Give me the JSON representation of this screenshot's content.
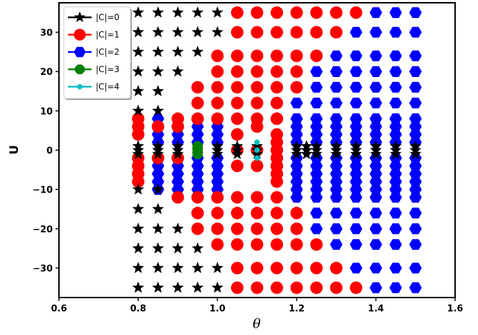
{
  "chart_data": {
    "type": "scatter",
    "xlabel": "θ",
    "ylabel": "U",
    "xlim": [
      0.6,
      1.6
    ],
    "ylim": [
      -37.5,
      37.5
    ],
    "xticks": [
      0.6,
      0.8,
      1.0,
      1.2,
      1.4,
      1.6
    ],
    "yticks": [
      -30,
      -20,
      -10,
      0,
      10,
      20,
      30
    ],
    "xtick_labels": [
      "0.6",
      "0.8",
      "1.0",
      "1.2",
      "1.4",
      "1.6"
    ],
    "ytick_labels": [
      "−30",
      "−20",
      "−10",
      "0",
      "10",
      "20",
      "30"
    ],
    "grid": false,
    "legend_position": "top-left",
    "series": [
      {
        "name": "|C|=0",
        "marker": "star",
        "color": "#000000",
        "x": [
          0.8,
          0.85,
          0.9,
          0.95,
          1.0,
          0.8,
          0.85,
          0.9,
          0.95,
          1.0,
          0.8,
          0.85,
          0.9,
          0.95,
          0.8,
          0.85,
          0.9,
          0.8,
          0.85,
          0.8,
          0.85,
          0.8,
          0.85,
          0.9,
          0.95,
          1.0,
          1.05,
          1.1,
          1.2,
          1.225,
          1.25,
          1.3,
          1.35,
          1.4,
          1.45,
          1.5,
          0.8,
          0.85,
          0.9,
          0.95,
          1.0,
          1.05,
          1.1,
          1.2,
          1.225,
          1.25,
          1.3,
          1.35,
          1.4,
          1.45,
          1.5,
          0.8,
          0.85,
          0.9,
          0.95,
          1.0,
          1.05,
          1.1,
          1.2,
          1.225,
          1.25,
          1.3,
          1.35,
          1.4,
          1.45,
          1.5,
          0.8,
          0.85,
          0.8,
          0.85,
          0.8,
          0.85,
          0.9,
          0.8,
          0.85,
          0.9,
          0.95,
          0.8,
          0.85,
          0.9,
          0.95,
          1.0,
          0.8,
          0.85,
          0.9,
          0.95,
          1.0
        ],
        "y": [
          35,
          35,
          35,
          35,
          35,
          30,
          30,
          30,
          30,
          30,
          25,
          25,
          25,
          25,
          20,
          20,
          20,
          15,
          15,
          10,
          10,
          1,
          1,
          1,
          1,
          1,
          1,
          1,
          1,
          1,
          1,
          1,
          1,
          1,
          1,
          1,
          0,
          0,
          0,
          0,
          0,
          0,
          0,
          0,
          0,
          0,
          0,
          0,
          0,
          0,
          0,
          -1,
          -1,
          -1,
          -1,
          -1,
          -1,
          -1,
          -1,
          -1,
          -1,
          -1,
          -1,
          -1,
          -1,
          -1,
          -10,
          -10,
          -15,
          -15,
          -20,
          -20,
          -20,
          -25,
          -25,
          -25,
          -25,
          -30,
          -30,
          -30,
          -30,
          -30,
          -35,
          -35,
          -35,
          -35,
          -35
        ]
      },
      {
        "name": "|C|=1",
        "marker": "circle",
        "color": "#ff0000",
        "x": [
          1.05,
          1.1,
          1.15,
          1.2,
          1.25,
          1.3,
          1.35,
          1.05,
          1.1,
          1.15,
          1.2,
          1.25,
          1.3,
          1.0,
          1.05,
          1.1,
          1.15,
          1.2,
          1.25,
          1.0,
          1.05,
          1.1,
          1.15,
          1.2,
          0.95,
          1.0,
          1.05,
          1.1,
          1.15,
          1.2,
          0.95,
          1.0,
          1.05,
          1.1,
          1.15,
          0.9,
          0.95,
          1.0,
          1.05,
          1.1,
          1.15,
          0.8,
          0.8,
          0.8,
          0.85,
          0.9,
          1.05,
          1.05,
          1.1,
          1.1,
          1.15,
          1.15,
          1.15,
          1.15,
          1.15,
          1.15,
          1.15,
          1.15,
          0.8,
          0.85,
          0.9,
          1.05,
          1.1,
          1.15,
          0.8,
          0.8,
          0.8,
          0.9,
          0.95,
          1.0,
          1.05,
          1.1,
          1.15,
          0.95,
          1.0,
          1.05,
          1.1,
          1.15,
          1.2,
          0.95,
          1.0,
          1.05,
          1.1,
          1.15,
          1.2,
          1.0,
          1.05,
          1.1,
          1.15,
          1.2,
          1.25,
          1.05,
          1.1,
          1.15,
          1.2,
          1.25,
          1.3,
          1.05,
          1.1,
          1.15,
          1.2,
          1.25,
          1.3,
          1.35
        ],
        "y": [
          35,
          35,
          35,
          35,
          35,
          35,
          35,
          30,
          30,
          30,
          30,
          30,
          30,
          24,
          24,
          24,
          24,
          24,
          24,
          20,
          20,
          20,
          20,
          20,
          16,
          16,
          16,
          16,
          16,
          16,
          12,
          12,
          12,
          12,
          12,
          8,
          8,
          8,
          8,
          8,
          8,
          8,
          6,
          4,
          6,
          6,
          4,
          0,
          6,
          0,
          4,
          2,
          0,
          -2,
          -4,
          -6,
          -8,
          8,
          -2,
          -2,
          -2,
          -4,
          -4,
          -4,
          -4,
          -6,
          -8,
          -12,
          -12,
          -12,
          -12,
          -12,
          -12,
          -16,
          -16,
          -16,
          -16,
          -16,
          -16,
          -20,
          -20,
          -20,
          -20,
          -20,
          -20,
          -24,
          -24,
          -24,
          -24,
          -24,
          -24,
          -30,
          -30,
          -30,
          -30,
          -30,
          -30,
          -35,
          -35,
          -35,
          -35,
          -35,
          -35,
          -35
        ]
      },
      {
        "name": "|C|=2",
        "marker": "hexagon",
        "color": "#0000ff",
        "x": [
          1.4,
          1.45,
          1.5,
          1.35,
          1.4,
          1.45,
          1.5,
          1.3,
          1.35,
          1.4,
          1.45,
          1.5,
          1.25,
          1.3,
          1.35,
          1.4,
          1.45,
          1.5,
          1.25,
          1.3,
          1.35,
          1.4,
          1.45,
          1.5,
          1.2,
          1.25,
          1.3,
          1.35,
          1.4,
          1.45,
          1.5,
          0.85,
          0.9,
          0.95,
          1.0,
          1.2,
          1.25,
          1.3,
          1.35,
          1.4,
          1.45,
          1.5,
          0.85,
          0.9,
          0.95,
          1.0,
          1.2,
          1.25,
          1.3,
          1.35,
          1.4,
          1.45,
          1.5,
          0.85,
          0.9,
          0.95,
          1.0,
          1.2,
          1.25,
          1.3,
          1.35,
          1.4,
          1.45,
          1.5,
          0.85,
          0.9,
          0.95,
          1.0,
          1.2,
          1.25,
          1.3,
          1.35,
          1.4,
          1.45,
          1.5,
          0.85,
          0.9,
          0.95,
          1.0,
          1.2,
          1.25,
          1.3,
          1.35,
          1.4,
          1.45,
          1.5,
          0.8,
          0.85,
          0.9,
          0.95,
          1.0,
          1.2,
          1.25,
          1.3,
          1.35,
          1.4,
          1.45,
          1.5,
          0.8,
          0.85,
          0.9,
          0.95,
          1.0,
          1.2,
          1.25,
          1.3,
          1.35,
          1.4,
          1.45,
          1.5,
          0.85,
          0.9,
          0.95,
          1.0,
          1.2,
          1.25,
          1.3,
          1.35,
          1.4,
          1.45,
          1.5,
          0.85,
          0.9,
          0.95,
          1.0,
          1.2,
          1.25,
          1.3,
          1.35,
          1.4,
          1.45,
          1.5,
          1.2,
          1.25,
          1.3,
          1.35,
          1.4,
          1.45,
          1.5,
          1.25,
          1.3,
          1.35,
          1.4,
          1.45,
          1.5,
          1.25,
          1.3,
          1.35,
          1.4,
          1.45,
          1.5,
          1.3,
          1.35,
          1.4,
          1.45,
          1.5,
          1.35,
          1.4,
          1.45,
          1.5,
          1.4,
          1.45,
          1.5
        ],
        "y": [
          35,
          35,
          35,
          30,
          30,
          30,
          30,
          24,
          24,
          24,
          24,
          24,
          20,
          20,
          20,
          20,
          20,
          20,
          16,
          16,
          16,
          16,
          16,
          16,
          12,
          12,
          12,
          12,
          12,
          12,
          12,
          8,
          8,
          8,
          8,
          8,
          8,
          8,
          8,
          8,
          8,
          8,
          6,
          6,
          6,
          6,
          6,
          6,
          6,
          6,
          6,
          6,
          6,
          4,
          4,
          4,
          4,
          4,
          4,
          4,
          4,
          4,
          4,
          4,
          2,
          2,
          2,
          2,
          2,
          2,
          2,
          2,
          2,
          2,
          2,
          -2,
          -2,
          -2,
          -2,
          -2,
          -2,
          -2,
          -2,
          -2,
          -2,
          -2,
          -4,
          -4,
          -4,
          -4,
          -4,
          -4,
          -4,
          -4,
          -4,
          -4,
          -4,
          -4,
          -6,
          -6,
          -6,
          -6,
          -6,
          -6,
          -6,
          -6,
          -6,
          -6,
          -6,
          -6,
          -8,
          -8,
          -8,
          -8,
          -8,
          -8,
          -8,
          -8,
          -8,
          -8,
          -8,
          -10,
          -10,
          -10,
          -10,
          -10,
          -10,
          -10,
          -10,
          -10,
          -10,
          -10,
          -12,
          -12,
          -12,
          -12,
          -12,
          -12,
          -12,
          -16,
          -16,
          -16,
          -16,
          -16,
          -16,
          -20,
          -20,
          -20,
          -20,
          -20,
          -20,
          -24,
          -24,
          -24,
          -24,
          -24,
          -30,
          -30,
          -30,
          -30,
          -35,
          -35,
          -35
        ]
      },
      {
        "name": "|C|=3",
        "marker": "octagon",
        "color": "#007f00",
        "x": [
          0.95,
          0.95,
          0.95
        ],
        "y": [
          1,
          0,
          -1
        ]
      },
      {
        "name": "|C|=4",
        "marker": "small-dot",
        "color": "#00bfbf",
        "x": [
          1.1,
          1.1,
          1.1
        ],
        "y": [
          2,
          0,
          -2
        ]
      }
    ]
  }
}
